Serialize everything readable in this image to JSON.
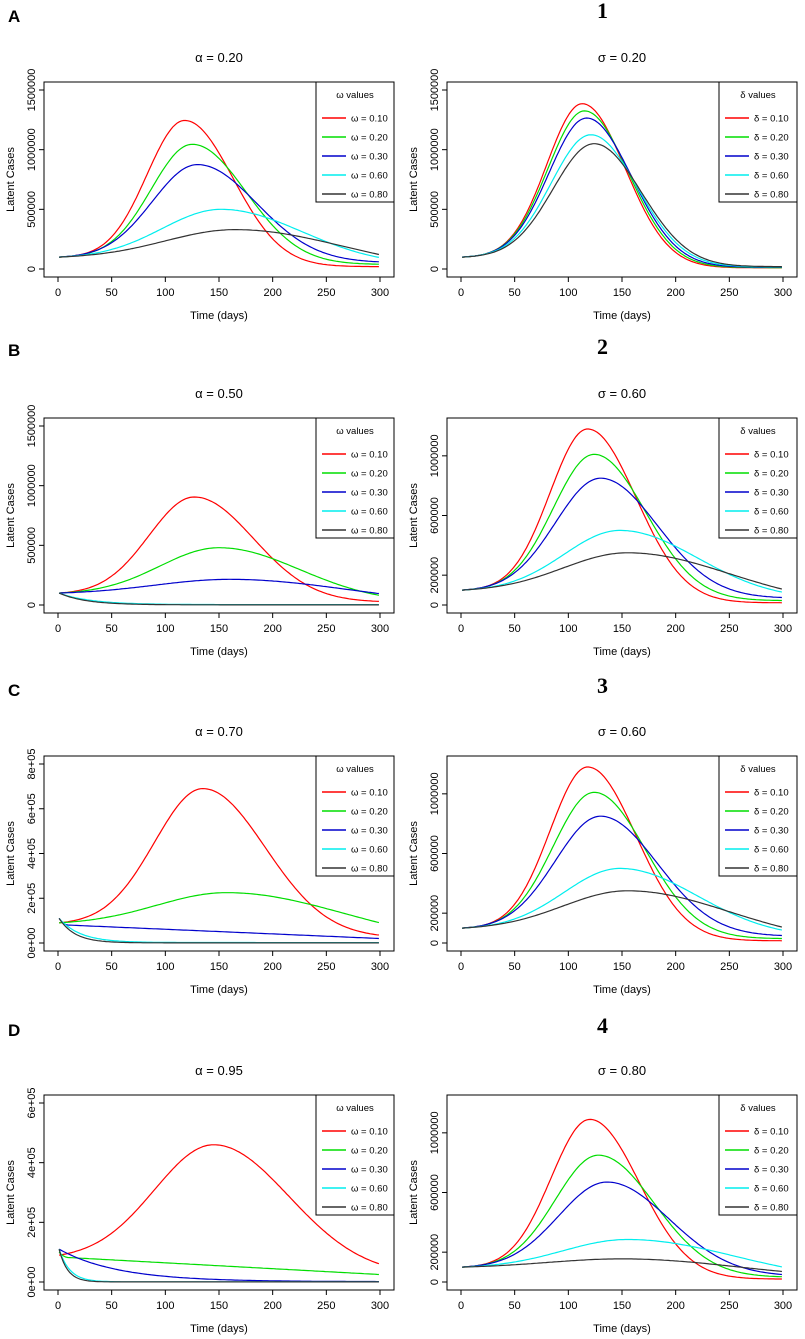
{
  "figure": {
    "rows": [
      {
        "letter": "A",
        "number": "1"
      },
      {
        "letter": "B",
        "number": "2"
      },
      {
        "letter": "C",
        "number": "3"
      },
      {
        "letter": "D",
        "number": "4"
      }
    ]
  },
  "chart_data": [
    {
      "type": "line",
      "title": "α = 0.20",
      "xlabel": "Time (days)",
      "ylabel": "Latent Cases",
      "xlim": [
        0,
        300
      ],
      "ylim": [
        0,
        1500000
      ],
      "xticks": [
        0,
        50,
        100,
        150,
        200,
        250,
        300
      ],
      "yticks": [
        0,
        500000,
        1000000,
        1500000
      ],
      "ytick_labels": [
        "0",
        "500000",
        "1000000",
        "1500000"
      ],
      "legend": {
        "title": "ω values",
        "position": "top-right"
      },
      "series": [
        {
          "name": "ω = 0.10",
          "color": "#ff0000",
          "start": 100000,
          "peak": 1245000,
          "peak_day": 118,
          "width_left": 35,
          "width_right": 45,
          "end": 20000
        },
        {
          "name": "ω = 0.20",
          "color": "#00dd00",
          "start": 100000,
          "peak": 1045000,
          "peak_day": 125,
          "width_left": 38,
          "width_right": 50,
          "end": 40000
        },
        {
          "name": "ω = 0.30",
          "color": "#0000cc",
          "start": 100000,
          "peak": 875000,
          "peak_day": 130,
          "width_left": 42,
          "width_right": 55,
          "end": 60000
        },
        {
          "name": "ω = 0.60",
          "color": "#00eeee",
          "start": 100000,
          "peak": 500000,
          "peak_day": 152,
          "width_left": 55,
          "width_right": 75,
          "end": 95000
        },
        {
          "name": "ω = 0.80",
          "color": "#333333",
          "start": 100000,
          "peak": 330000,
          "peak_day": 165,
          "width_left": 65,
          "width_right": 100,
          "end": 120000
        }
      ]
    },
    {
      "type": "line",
      "title": "σ = 0.20",
      "xlabel": "Time (days)",
      "ylabel": "Latent Cases",
      "xlim": [
        0,
        300
      ],
      "ylim": [
        0,
        1500000
      ],
      "xticks": [
        0,
        50,
        100,
        150,
        200,
        250,
        300
      ],
      "yticks": [
        0,
        500000,
        1000000,
        1500000
      ],
      "ytick_labels": [
        "0",
        "500000",
        "1000000",
        "1500000"
      ],
      "legend": {
        "title": "δ values",
        "position": "top-right"
      },
      "series": [
        {
          "name": "δ = 0.10",
          "color": "#ff0000",
          "start": 100000,
          "peak": 1385000,
          "peak_day": 113,
          "width_left": 33,
          "width_right": 40,
          "end": 10000
        },
        {
          "name": "δ = 0.20",
          "color": "#00dd00",
          "start": 100000,
          "peak": 1325000,
          "peak_day": 115,
          "width_left": 34,
          "width_right": 41,
          "end": 12000
        },
        {
          "name": "δ = 0.30",
          "color": "#0000cc",
          "start": 100000,
          "peak": 1265000,
          "peak_day": 117,
          "width_left": 35,
          "width_right": 42,
          "end": 15000
        },
        {
          "name": "δ = 0.60",
          "color": "#00eeee",
          "start": 100000,
          "peak": 1125000,
          "peak_day": 121,
          "width_left": 37,
          "width_right": 43,
          "end": 18000
        },
        {
          "name": "δ = 0.80",
          "color": "#333333",
          "start": 100000,
          "peak": 1050000,
          "peak_day": 124,
          "width_left": 38,
          "width_right": 44,
          "end": 20000
        }
      ]
    },
    {
      "type": "line",
      "title": "α = 0.50",
      "xlabel": "Time (days)",
      "ylabel": "Latent Cases",
      "xlim": [
        0,
        300
      ],
      "ylim": [
        0,
        1500000
      ],
      "xticks": [
        0,
        50,
        100,
        150,
        200,
        250,
        300
      ],
      "yticks": [
        0,
        500000,
        1000000,
        1500000
      ],
      "ytick_labels": [
        "0",
        "500000",
        "1000000",
        "1500000"
      ],
      "legend": {
        "title": "ω values",
        "position": "top-right"
      },
      "series": [
        {
          "name": "ω = 0.10",
          "color": "#ff0000",
          "start": 100000,
          "peak": 905000,
          "peak_day": 127,
          "width_left": 42,
          "width_right": 55,
          "end": 30000
        },
        {
          "name": "ω = 0.20",
          "color": "#00dd00",
          "start": 100000,
          "peak": 480000,
          "peak_day": 150,
          "width_left": 55,
          "width_right": 75,
          "end": 80000
        },
        {
          "name": "ω = 0.30",
          "color": "#0000cc",
          "start": 100000,
          "peak": 215000,
          "peak_day": 160,
          "width_left": 70,
          "width_right": 110,
          "end": 95000
        },
        {
          "name": "ω = 0.60",
          "color": "#00eeee",
          "kind": "decay",
          "start": 100000,
          "floor": 3000,
          "tau": 30
        },
        {
          "name": "ω = 0.80",
          "color": "#333333",
          "kind": "decay",
          "start": 100000,
          "floor": 1000,
          "tau": 25
        }
      ]
    },
    {
      "type": "line",
      "title": "σ = 0.60",
      "xlabel": "Time (days)",
      "ylabel": "Latent Cases",
      "xlim": [
        0,
        300
      ],
      "ylim": [
        0,
        1200000
      ],
      "xticks": [
        0,
        50,
        100,
        150,
        200,
        250,
        300
      ],
      "yticks": [
        0,
        200000,
        600000,
        1000000
      ],
      "ytick_labels": [
        "0",
        "200000",
        "600000",
        "1000000"
      ],
      "legend": {
        "title": "δ values",
        "position": "top-right"
      },
      "series": [
        {
          "name": "δ = 0.10",
          "color": "#ff0000",
          "start": 100000,
          "peak": 1180000,
          "peak_day": 118,
          "width_left": 35,
          "width_right": 45,
          "end": 15000
        },
        {
          "name": "δ = 0.20",
          "color": "#00dd00",
          "start": 100000,
          "peak": 1010000,
          "peak_day": 124,
          "width_left": 38,
          "width_right": 48,
          "end": 30000
        },
        {
          "name": "δ = 0.30",
          "color": "#0000cc",
          "start": 100000,
          "peak": 850000,
          "peak_day": 130,
          "width_left": 42,
          "width_right": 53,
          "end": 50000
        },
        {
          "name": "δ = 0.60",
          "color": "#00eeee",
          "start": 100000,
          "peak": 500000,
          "peak_day": 148,
          "width_left": 52,
          "width_right": 72,
          "end": 85000
        },
        {
          "name": "δ = 0.80",
          "color": "#333333",
          "start": 100000,
          "peak": 350000,
          "peak_day": 155,
          "width_left": 60,
          "width_right": 95,
          "end": 105000
        }
      ]
    },
    {
      "type": "line",
      "title": "α = 0.70",
      "xlabel": "Time (days)",
      "ylabel": "Latent Cases",
      "xlim": [
        0,
        300
      ],
      "ylim": [
        0,
        800000
      ],
      "xticks": [
        0,
        50,
        100,
        150,
        200,
        250,
        300
      ],
      "yticks": [
        0,
        200000,
        400000,
        600000,
        800000
      ],
      "ytick_labels": [
        "0e+00",
        "2e+05",
        "4e+05",
        "6e+05",
        "8e+05"
      ],
      "legend": {
        "title": "ω values",
        "position": "top-right"
      },
      "series": [
        {
          "name": "ω = 0.10",
          "color": "#ff0000",
          "start": 90000,
          "peak": 690000,
          "peak_day": 135,
          "width_left": 45,
          "width_right": 58,
          "end": 35000
        },
        {
          "name": "ω = 0.20",
          "color": "#00dd00",
          "start": 90000,
          "peak": 225000,
          "peak_day": 157,
          "width_left": 65,
          "width_right": 110,
          "end": 90000
        },
        {
          "name": "ω = 0.30",
          "color": "#0000cc",
          "kind": "linear_decay",
          "start": 110000,
          "knee": 80000,
          "knee_day": 10,
          "end": 20000
        },
        {
          "name": "ω = 0.60",
          "color": "#00eeee",
          "kind": "decay",
          "start": 110000,
          "floor": 2000,
          "tau": 20
        },
        {
          "name": "ω = 0.80",
          "color": "#333333",
          "kind": "decay",
          "start": 110000,
          "floor": 500,
          "tau": 15
        }
      ]
    },
    {
      "type": "line",
      "title": "σ = 0.60",
      "xlabel": "Time (days)",
      "ylabel": "Latent Cases",
      "xlim": [
        0,
        300
      ],
      "ylim": [
        0,
        1200000
      ],
      "xticks": [
        0,
        50,
        100,
        150,
        200,
        250,
        300
      ],
      "yticks": [
        0,
        200000,
        600000,
        1000000
      ],
      "ytick_labels": [
        "0",
        "200000",
        "600000",
        "1000000"
      ],
      "legend": {
        "title": "δ values",
        "position": "top-right"
      },
      "series": [
        {
          "name": "δ = 0.10",
          "color": "#ff0000",
          "start": 100000,
          "peak": 1180000,
          "peak_day": 118,
          "width_left": 35,
          "width_right": 45,
          "end": 15000
        },
        {
          "name": "δ = 0.20",
          "color": "#00dd00",
          "start": 100000,
          "peak": 1010000,
          "peak_day": 124,
          "width_left": 38,
          "width_right": 48,
          "end": 30000
        },
        {
          "name": "δ = 0.30",
          "color": "#0000cc",
          "start": 100000,
          "peak": 850000,
          "peak_day": 130,
          "width_left": 42,
          "width_right": 53,
          "end": 50000
        },
        {
          "name": "δ = 0.60",
          "color": "#00eeee",
          "start": 100000,
          "peak": 500000,
          "peak_day": 148,
          "width_left": 52,
          "width_right": 72,
          "end": 85000
        },
        {
          "name": "δ = 0.80",
          "color": "#333333",
          "start": 100000,
          "peak": 350000,
          "peak_day": 155,
          "width_left": 60,
          "width_right": 95,
          "end": 105000
        }
      ]
    },
    {
      "type": "line",
      "title": "α = 0.95",
      "xlabel": "Time (days)",
      "ylabel": "Latent Cases",
      "xlim": [
        0,
        300
      ],
      "ylim": [
        0,
        600000
      ],
      "xticks": [
        0,
        50,
        100,
        150,
        200,
        250,
        300
      ],
      "yticks": [
        0,
        200000,
        400000,
        600000
      ],
      "ytick_labels": [
        "0e+00",
        "2e+05",
        "4e+05",
        "6e+05"
      ],
      "legend": {
        "title": "ω values",
        "position": "top-right"
      },
      "series": [
        {
          "name": "ω = 0.10",
          "color": "#ff0000",
          "start": 90000,
          "peak": 460000,
          "peak_day": 145,
          "width_left": 55,
          "width_right": 70,
          "end": 60000
        },
        {
          "name": "ω = 0.20",
          "color": "#00dd00",
          "kind": "linear_decay",
          "start": 100000,
          "knee": 82000,
          "knee_day": 10,
          "end": 25000
        },
        {
          "name": "ω = 0.30",
          "color": "#0000cc",
          "kind": "decay",
          "start": 110000,
          "floor": 1000,
          "tau": 55
        },
        {
          "name": "ω = 0.60",
          "color": "#00eeee",
          "kind": "decay",
          "start": 110000,
          "floor": 500,
          "tau": 10
        },
        {
          "name": "ω = 0.80",
          "color": "#333333",
          "kind": "decay",
          "start": 110000,
          "floor": 200,
          "tau": 8
        }
      ]
    },
    {
      "type": "line",
      "title": "σ = 0.80",
      "xlabel": "Time (days)",
      "ylabel": "Latent Cases",
      "xlim": [
        0,
        300
      ],
      "ylim": [
        0,
        1200000
      ],
      "xticks": [
        0,
        50,
        100,
        150,
        200,
        250,
        300
      ],
      "yticks": [
        0,
        200000,
        600000,
        1000000
      ],
      "ytick_labels": [
        "0",
        "200000",
        "600000",
        "1000000"
      ],
      "legend": {
        "title": "δ values",
        "position": "top-right"
      },
      "series": [
        {
          "name": "δ = 0.10",
          "color": "#ff0000",
          "start": 100000,
          "peak": 1090000,
          "peak_day": 120,
          "width_left": 36,
          "width_right": 46,
          "end": 20000
        },
        {
          "name": "δ = 0.20",
          "color": "#00dd00",
          "start": 100000,
          "peak": 850000,
          "peak_day": 128,
          "width_left": 40,
          "width_right": 52,
          "end": 35000
        },
        {
          "name": "δ = 0.30",
          "color": "#0000cc",
          "start": 100000,
          "peak": 670000,
          "peak_day": 136,
          "width_left": 45,
          "width_right": 58,
          "end": 50000
        },
        {
          "name": "δ = 0.60",
          "color": "#00eeee",
          "start": 100000,
          "peak": 285000,
          "peak_day": 155,
          "width_left": 60,
          "width_right": 100,
          "end": 100000
        },
        {
          "name": "δ = 0.80",
          "color": "#333333",
          "start": 100000,
          "peak": 155000,
          "peak_day": 150,
          "width_left": 70,
          "width_right": 110,
          "end": 70000
        }
      ]
    }
  ]
}
